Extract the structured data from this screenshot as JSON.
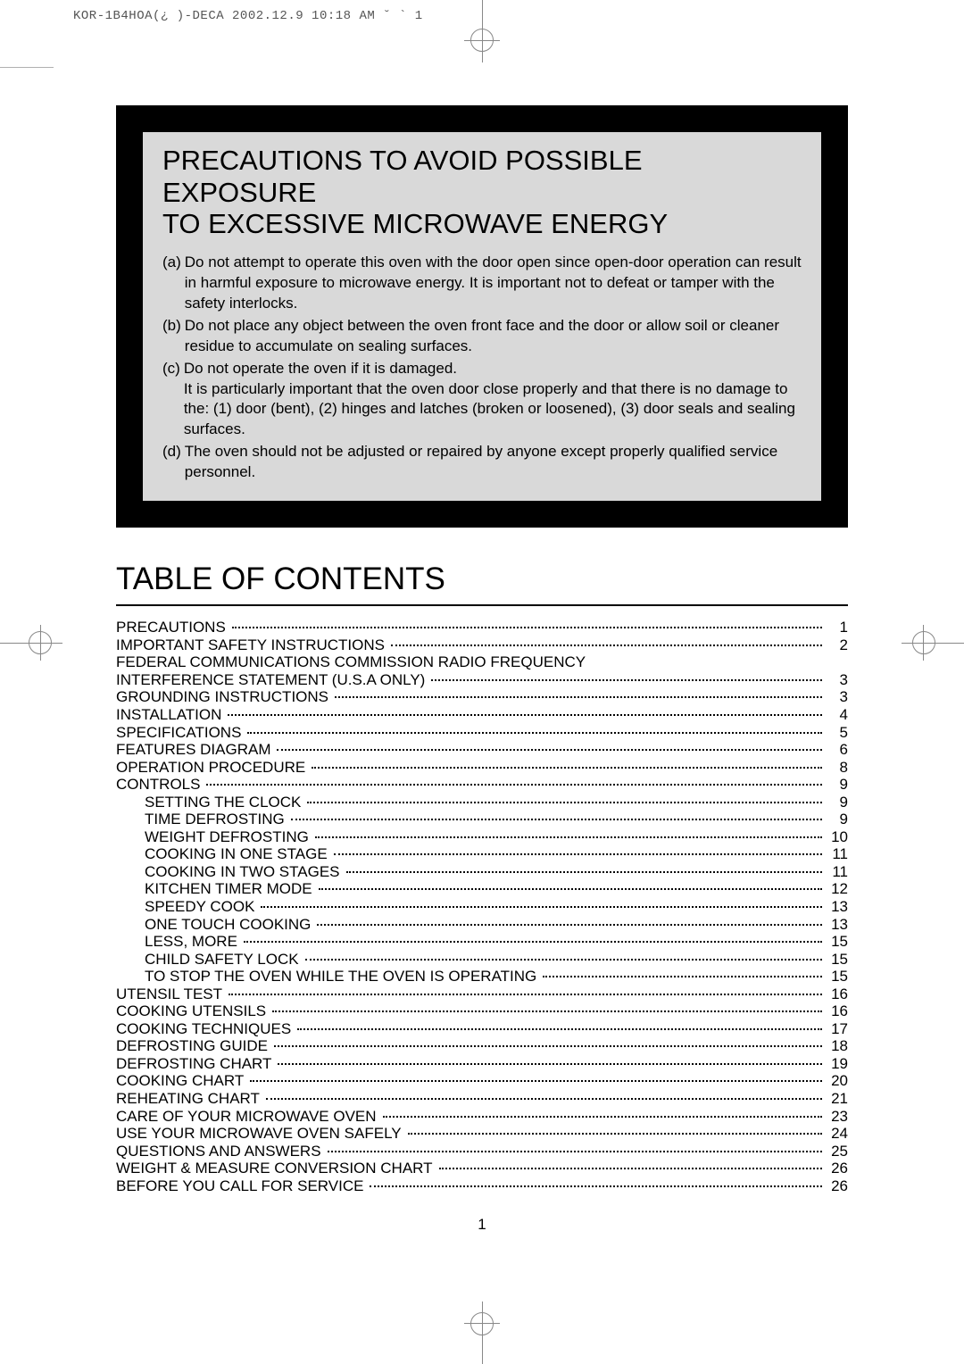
{
  "meta": {
    "header_text": "KOR-1B4HOA(¿ )-DECA 2002.12.9 10:18 AM ˘ ` 1"
  },
  "precautions": {
    "title_line1": "PRECAUTIONS TO AVOID POSSIBLE EXPOSURE",
    "title_line2": "TO EXCESSIVE MICROWAVE ENERGY",
    "items": [
      {
        "label": "(a)",
        "text": "Do not attempt to operate this oven with the door open since open-door operation can result in harmful exposure to microwave energy. It is important not to defeat or tamper with the safety interlocks."
      },
      {
        "label": "(b)",
        "text": "Do not place any object between the oven front face and the door or allow soil or cleaner residue to accumulate on sealing surfaces."
      },
      {
        "label": "(c)",
        "text": "Do not operate the oven if it is damaged.",
        "sub": "It is particularly important that the oven door close properly and that there is no damage to the: (1) door (bent), (2) hinges and latches (broken or loosened), (3) door seals and sealing surfaces."
      },
      {
        "label": "(d)",
        "text": "The oven should not be adjusted or repaired by anyone except properly qualified service personnel."
      }
    ]
  },
  "toc": {
    "heading": "TABLE OF CONTENTS",
    "entries": [
      {
        "title": "PRECAUTIONS",
        "page": "1",
        "indent": false
      },
      {
        "title": "IMPORTANT SAFETY INSTRUCTIONS",
        "page": "2",
        "indent": false
      },
      {
        "title": "FEDERAL COMMUNICATIONS COMMISSION RADIO FREQUENCY",
        "page": "",
        "indent": false,
        "noline": true
      },
      {
        "title": "INTERFERENCE STATEMENT (U.S.A ONLY)",
        "page": "3",
        "indent": false
      },
      {
        "title": "GROUNDING INSTRUCTIONS",
        "page": "3",
        "indent": false
      },
      {
        "title": "INSTALLATION",
        "page": "4",
        "indent": false
      },
      {
        "title": "SPECIFICATIONS",
        "page": "5",
        "indent": false
      },
      {
        "title": "FEATURES DIAGRAM",
        "page": "6",
        "indent": false
      },
      {
        "title": "OPERATION PROCEDURE",
        "page": "8",
        "indent": false
      },
      {
        "title": "CONTROLS",
        "page": "9",
        "indent": false
      },
      {
        "title": "SETTING THE CLOCK",
        "page": "9",
        "indent": true
      },
      {
        "title": "TIME DEFROSTING",
        "page": "9",
        "indent": true
      },
      {
        "title": "WEIGHT DEFROSTING",
        "page": "10",
        "indent": true
      },
      {
        "title": "COOKING IN ONE STAGE",
        "page": "11",
        "indent": true
      },
      {
        "title": "COOKING IN TWO STAGES",
        "page": "11",
        "indent": true
      },
      {
        "title": "KITCHEN TIMER MODE",
        "page": "12",
        "indent": true
      },
      {
        "title": "SPEEDY COOK",
        "page": "13",
        "indent": true
      },
      {
        "title": "ONE TOUCH COOKING",
        "page": "13",
        "indent": true
      },
      {
        "title": "LESS, MORE",
        "page": "15",
        "indent": true
      },
      {
        "title": "CHILD SAFETY LOCK",
        "page": "15",
        "indent": true
      },
      {
        "title": "TO STOP THE OVEN WHILE THE OVEN IS OPERATING",
        "page": "15",
        "indent": true
      },
      {
        "title": "UTENSIL TEST",
        "page": "16",
        "indent": false
      },
      {
        "title": "COOKING UTENSILS",
        "page": "16",
        "indent": false
      },
      {
        "title": "COOKING TECHNIQUES",
        "page": "17",
        "indent": false
      },
      {
        "title": "DEFROSTING GUIDE",
        "page": "18",
        "indent": false
      },
      {
        "title": "DEFROSTING CHART",
        "page": "19",
        "indent": false
      },
      {
        "title": "COOKING CHART",
        "page": "20",
        "indent": false
      },
      {
        "title": "REHEATING CHART",
        "page": "21",
        "indent": false
      },
      {
        "title": "CARE OF YOUR MICROWAVE OVEN",
        "page": "23",
        "indent": false
      },
      {
        "title": "USE YOUR MICROWAVE OVEN SAFELY",
        "page": "24",
        "indent": false
      },
      {
        "title": "QUESTIONS AND ANSWERS",
        "page": "25",
        "indent": false
      },
      {
        "title": "WEIGHT & MEASURE CONVERSION CHART",
        "page": "26",
        "indent": false
      },
      {
        "title": "BEFORE YOU CALL FOR SERVICE",
        "page": "26",
        "indent": false
      }
    ]
  },
  "page_number": "1",
  "colors": {
    "box_border": "#000000",
    "box_bg": "#d9d9d9",
    "text": "#000000",
    "crop": "#888888"
  }
}
